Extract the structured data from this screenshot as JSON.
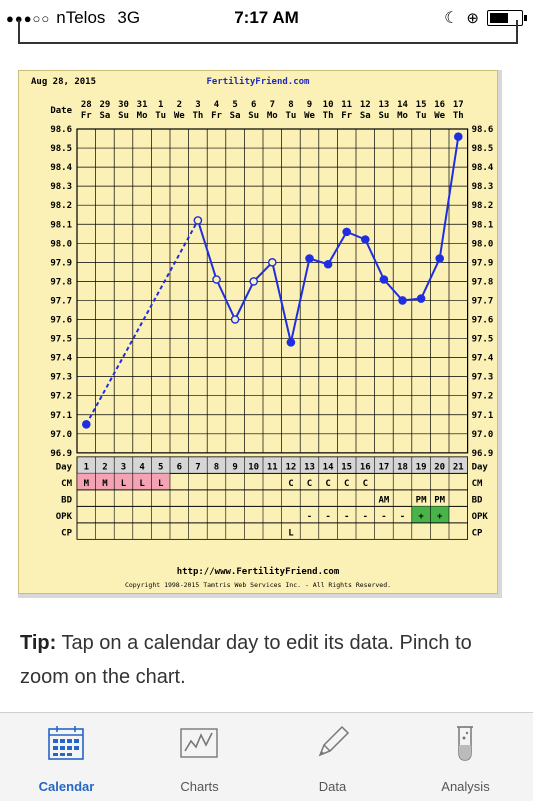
{
  "status_bar": {
    "carrier": "nTelos",
    "network": "3G",
    "time": "7:17 AM"
  },
  "chart": {
    "date_stamp": "Aug 28, 2015",
    "site": "FertilityFriend.com",
    "url": "http://www.FertilityFriend.com",
    "copyright": "Copyright 1998-2015 Tamtris Web Services Inc. - All Rights Reserved.",
    "row_labels": {
      "date": "Date",
      "day": "Day",
      "cm": "CM",
      "bd": "BD",
      "opk": "OPK",
      "cp": "CP"
    }
  },
  "chart_data": {
    "type": "line",
    "title": "",
    "dates": [
      "28",
      "29",
      "30",
      "31",
      "1",
      "2",
      "3",
      "4",
      "5",
      "6",
      "7",
      "8",
      "9",
      "10",
      "11",
      "12",
      "13",
      "14",
      "15",
      "16",
      "17"
    ],
    "weekdays": [
      "Fr",
      "Sa",
      "Su",
      "Mo",
      "Tu",
      "We",
      "Th",
      "Fr",
      "Sa",
      "Su",
      "Mo",
      "Tu",
      "We",
      "Th",
      "Fr",
      "Sa",
      "Su",
      "Mo",
      "Tu",
      "We",
      "Th"
    ],
    "cycle_days": [
      "1",
      "2",
      "3",
      "4",
      "5",
      "6",
      "7",
      "8",
      "9",
      "10",
      "11",
      "12",
      "13",
      "14",
      "15",
      "16",
      "17",
      "18",
      "19",
      "20",
      "21"
    ],
    "y_ticks": [
      "98.6",
      "98.5",
      "98.4",
      "98.3",
      "98.2",
      "98.1",
      "98.0",
      "97.9",
      "97.8",
      "97.7",
      "97.6",
      "97.5",
      "97.4",
      "97.3",
      "97.2",
      "97.1",
      "97.0",
      "96.9"
    ],
    "ylim": [
      96.9,
      98.6
    ],
    "temperatures": [
      97.05,
      null,
      null,
      null,
      null,
      null,
      98.12,
      97.81,
      97.6,
      97.8,
      97.9,
      97.48,
      97.92,
      97.89,
      98.06,
      98.02,
      97.81,
      97.7,
      97.71,
      97.92,
      98.56
    ],
    "open_points_days": [
      7,
      8,
      9,
      10,
      11
    ],
    "dashed_segments": [
      [
        1,
        7
      ]
    ],
    "cm": [
      "M",
      "M",
      "L",
      "L",
      "L",
      "",
      "",
      "",
      "",
      "",
      "",
      "C",
      "C",
      "C",
      "C",
      "C",
      "",
      "",
      "",
      "",
      ""
    ],
    "bd": [
      "",
      "",
      "",
      "",
      "",
      "",
      "",
      "",
      "",
      "",
      "",
      "",
      "",
      "",
      "",
      "",
      "AM",
      "",
      "PM",
      "PM",
      ""
    ],
    "opk": [
      "",
      "",
      "",
      "",
      "",
      "",
      "",
      "",
      "",
      "",
      "",
      "",
      "-",
      "-",
      "-",
      "-",
      "-",
      "-",
      "+",
      "+",
      ""
    ],
    "cp": [
      "",
      "",
      "",
      "",
      "",
      "",
      "",
      "",
      "",
      "",
      "",
      "L",
      "",
      "",
      "",
      "",
      "",
      "",
      "",
      "",
      ""
    ],
    "grid": true
  },
  "tip": {
    "bold": "Tip:",
    "text": " Tap on a calendar day to edit its data. Pinch to zoom on the chart."
  },
  "tabs": [
    {
      "label": "Calendar",
      "icon": "calendar-icon",
      "active": true
    },
    {
      "label": "Charts",
      "icon": "chart-line-icon",
      "active": false
    },
    {
      "label": "Data",
      "icon": "pencil-icon",
      "active": false
    },
    {
      "label": "Analysis",
      "icon": "test-tube-icon",
      "active": false
    }
  ],
  "colors": {
    "accent": "#2566c7",
    "line": "#1f2ee0",
    "chart_bg": "#fbf1b6",
    "menstruation": "#f4a3b5",
    "opk_positive": "#49b34a"
  }
}
